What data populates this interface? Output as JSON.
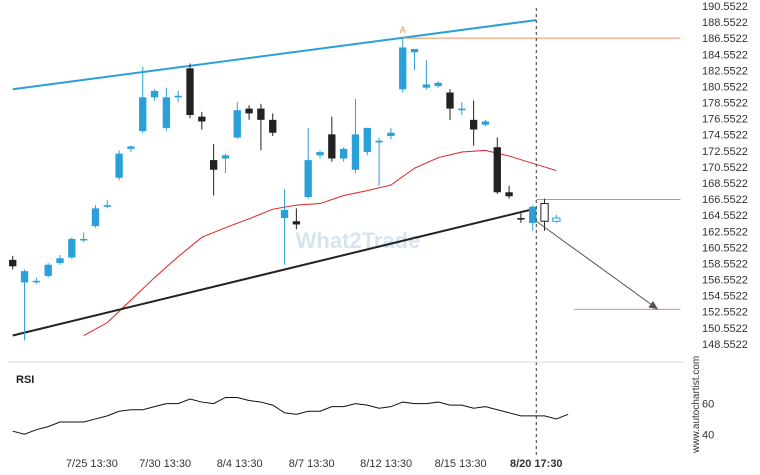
{
  "chart_data": [
    {
      "type": "candlestick",
      "title": "",
      "watermark": "What2Trade",
      "credit": "www.autochartist.com",
      "xlabel": "",
      "ylabel": "",
      "ylim": [
        147.55,
        190.55
      ],
      "y_ticks": [
        "190.5522",
        "188.5522",
        "186.5522",
        "184.5522",
        "182.5522",
        "180.5522",
        "178.5522",
        "176.5522",
        "174.5522",
        "172.5522",
        "170.5522",
        "168.5522",
        "166.5522",
        "164.5522",
        "162.5522",
        "160.5522",
        "158.5522",
        "156.5522",
        "154.5522",
        "152.5522",
        "150.5522",
        "148.5522"
      ],
      "x_ticks": [
        {
          "label": "7/25 13:30",
          "idx": 6.7
        },
        {
          "label": "7/30 13:30",
          "idx": 12.9
        },
        {
          "label": "8/4 13:30",
          "idx": 19.2
        },
        {
          "label": "8/7 13:30",
          "idx": 25.3
        },
        {
          "label": "8/12 13:30",
          "idx": 31.6
        },
        {
          "label": "8/15 13:30",
          "idx": 37.9
        },
        {
          "label": "8/20 17:30",
          "idx": 44.3,
          "bold": true
        }
      ],
      "candles": [
        {
          "o": 159.0,
          "h": 159.5,
          "l": 157.8,
          "c": 158.2
        },
        {
          "o": 156.2,
          "h": 157.8,
          "l": 149.0,
          "c": 157.6
        },
        {
          "o": 156.3,
          "h": 156.8,
          "l": 156.0,
          "c": 156.4
        },
        {
          "o": 157.0,
          "h": 158.6,
          "l": 156.8,
          "c": 158.4
        },
        {
          "o": 158.6,
          "h": 159.6,
          "l": 158.4,
          "c": 159.2
        },
        {
          "o": 159.3,
          "h": 161.8,
          "l": 159.1,
          "c": 161.6
        },
        {
          "o": 161.6,
          "h": 162.4,
          "l": 161.2,
          "c": 161.6
        },
        {
          "o": 163.2,
          "h": 165.8,
          "l": 163.0,
          "c": 165.4
        },
        {
          "o": 165.6,
          "h": 166.4,
          "l": 165.4,
          "c": 165.8
        },
        {
          "o": 169.2,
          "h": 172.6,
          "l": 168.9,
          "c": 172.2
        },
        {
          "o": 172.8,
          "h": 173.2,
          "l": 172.4,
          "c": 173.1
        },
        {
          "o": 175.0,
          "h": 183.0,
          "l": 174.8,
          "c": 179.2
        },
        {
          "o": 179.2,
          "h": 180.2,
          "l": 178.8,
          "c": 180.0
        },
        {
          "o": 175.4,
          "h": 180.4,
          "l": 175.0,
          "c": 179.2
        },
        {
          "o": 179.2,
          "h": 180.0,
          "l": 178.6,
          "c": 179.4
        },
        {
          "o": 182.8,
          "h": 183.4,
          "l": 176.6,
          "c": 177.0
        },
        {
          "o": 176.8,
          "h": 177.4,
          "l": 175.2,
          "c": 176.2
        },
        {
          "o": 171.4,
          "h": 173.4,
          "l": 167.0,
          "c": 170.2
        },
        {
          "o": 171.6,
          "h": 172.2,
          "l": 169.8,
          "c": 172.0
        },
        {
          "o": 174.2,
          "h": 178.6,
          "l": 174.0,
          "c": 177.6
        },
        {
          "o": 177.8,
          "h": 178.2,
          "l": 176.4,
          "c": 177.2
        },
        {
          "o": 177.8,
          "h": 178.4,
          "l": 172.6,
          "c": 176.4
        },
        {
          "o": 176.4,
          "h": 177.2,
          "l": 174.4,
          "c": 174.8
        },
        {
          "o": 164.2,
          "h": 167.8,
          "l": 158.4,
          "c": 165.2
        },
        {
          "o": 163.8,
          "h": 165.4,
          "l": 162.8,
          "c": 163.4
        },
        {
          "o": 166.8,
          "h": 175.4,
          "l": 166.6,
          "c": 171.4
        },
        {
          "o": 172.0,
          "h": 172.6,
          "l": 171.6,
          "c": 172.4
        },
        {
          "o": 174.6,
          "h": 176.8,
          "l": 171.2,
          "c": 171.6
        },
        {
          "o": 171.6,
          "h": 173.0,
          "l": 171.2,
          "c": 172.8
        },
        {
          "o": 170.2,
          "h": 179.0,
          "l": 169.8,
          "c": 174.6
        },
        {
          "o": 172.4,
          "h": 175.4,
          "l": 172.0,
          "c": 175.4
        },
        {
          "o": 173.6,
          "h": 174.2,
          "l": 168.2,
          "c": 173.8
        },
        {
          "o": 174.4,
          "h": 175.4,
          "l": 174.0,
          "c": 174.8
        },
        {
          "o": 180.2,
          "h": 186.6,
          "l": 179.8,
          "c": 185.4
        },
        {
          "o": 184.8,
          "h": 185.2,
          "l": 182.6,
          "c": 185.2
        },
        {
          "o": 180.4,
          "h": 183.8,
          "l": 180.2,
          "c": 180.8
        },
        {
          "o": 180.6,
          "h": 181.2,
          "l": 180.4,
          "c": 181.0
        },
        {
          "o": 179.8,
          "h": 180.2,
          "l": 176.4,
          "c": 177.8
        },
        {
          "o": 177.6,
          "h": 178.6,
          "l": 177.0,
          "c": 177.8
        },
        {
          "o": 176.4,
          "h": 178.8,
          "l": 173.2,
          "c": 175.2
        },
        {
          "o": 175.8,
          "h": 176.4,
          "l": 175.6,
          "c": 176.2
        },
        {
          "o": 173.0,
          "h": 174.2,
          "l": 167.2,
          "c": 167.4
        },
        {
          "o": 167.4,
          "h": 168.2,
          "l": 166.6,
          "c": 166.9
        },
        {
          "o": 164.2,
          "h": 164.8,
          "l": 163.6,
          "c": 164.0
        },
        {
          "o": 163.6,
          "h": 165.8,
          "l": 162.6,
          "c": 165.6
        },
        {
          "o": 166.0,
          "h": 166.6,
          "l": 162.6,
          "c": 163.8
        },
        {
          "o": 163.8,
          "h": 164.6,
          "l": 163.6,
          "c": 164.2
        }
      ],
      "ma_series": {
        "color": "#e02020",
        "points": [
          [
            6.0,
            149.6
          ],
          [
            8.0,
            151.2
          ],
          [
            10.0,
            154.0
          ],
          [
            12.0,
            156.8
          ],
          [
            14.0,
            159.4
          ],
          [
            16.0,
            161.8
          ],
          [
            18.0,
            163.0
          ],
          [
            20.0,
            164.1
          ],
          [
            22.0,
            165.3
          ],
          [
            24.0,
            165.8
          ],
          [
            26.0,
            166.0
          ],
          [
            28.0,
            167.0
          ],
          [
            30.0,
            167.6
          ],
          [
            32.0,
            168.3
          ],
          [
            34.0,
            170.4
          ],
          [
            36.0,
            171.7
          ],
          [
            38.0,
            172.4
          ],
          [
            40.0,
            172.6
          ],
          [
            42.0,
            171.9
          ],
          [
            44.0,
            171.0
          ],
          [
            46.0,
            170.1
          ]
        ]
      },
      "trendlines": [
        {
          "name": "upper",
          "color": "#2aa0d8",
          "from": [
            0,
            180.2
          ],
          "to": [
            44.3,
            188.8
          ]
        },
        {
          "name": "lower",
          "color": "#222222",
          "from": [
            0,
            149.6
          ],
          "to": [
            44.3,
            165.4
          ]
        }
      ],
      "hlines": [
        {
          "y": 186.55,
          "color": "#f08a5a",
          "x_from": 33.0,
          "x_to": 56.5
        },
        {
          "y": 166.5,
          "color": "#f08a5a",
          "x_from": 44.3,
          "x_to": 56.5
        },
        {
          "y": 152.85,
          "color": "#f08a5a",
          "x_from": 47.5,
          "x_to": 56.5
        }
      ],
      "projection_arrow": {
        "color": "#555555",
        "from": [
          44.3,
          163.8
        ],
        "to": [
          54.6,
          152.85
        ]
      },
      "point_marker": {
        "label": "A",
        "idx": 33.0,
        "y": 187.1
      },
      "current_time_idx": 44.3,
      "idx_range": [
        -0.4,
        56.8
      ],
      "colors": {
        "up": "#2aa0d8",
        "down": "#222222",
        "forecast_up": "#2aa0d8",
        "forecast_down": "#222222"
      }
    },
    {
      "type": "line",
      "title": "RSI",
      "ylim": [
        33,
        78
      ],
      "y_ticks": [
        "60",
        "40"
      ],
      "series": [
        {
          "color": "#111111",
          "points": [
            [
              0,
              42
            ],
            [
              1,
              40
            ],
            [
              2,
              43
            ],
            [
              3,
              45
            ],
            [
              4,
              48
            ],
            [
              5,
              48
            ],
            [
              6,
              48
            ],
            [
              7,
              50
            ],
            [
              8,
              52
            ],
            [
              9,
              55
            ],
            [
              10,
              56
            ],
            [
              11,
              56
            ],
            [
              12,
              58
            ],
            [
              13,
              60
            ],
            [
              14,
              60
            ],
            [
              15,
              63
            ],
            [
              16,
              61
            ],
            [
              17,
              60
            ],
            [
              18,
              64
            ],
            [
              19,
              64
            ],
            [
              20,
              62
            ],
            [
              21,
              61
            ],
            [
              22,
              59
            ],
            [
              23,
              54
            ],
            [
              24,
              53
            ],
            [
              25,
              55
            ],
            [
              26,
              55
            ],
            [
              27,
              58
            ],
            [
              28,
              58
            ],
            [
              29,
              60
            ],
            [
              30,
              59
            ],
            [
              31,
              57
            ],
            [
              32,
              58
            ],
            [
              33,
              61
            ],
            [
              34,
              60
            ],
            [
              35,
              60
            ],
            [
              36,
              61
            ],
            [
              37,
              59
            ],
            [
              38,
              59
            ],
            [
              39,
              57
            ],
            [
              40,
              58
            ],
            [
              41,
              56
            ],
            [
              42,
              54
            ],
            [
              43,
              52
            ],
            [
              44,
              52
            ],
            [
              45,
              52
            ],
            [
              46,
              50
            ],
            [
              47,
              53
            ]
          ]
        }
      ]
    }
  ]
}
